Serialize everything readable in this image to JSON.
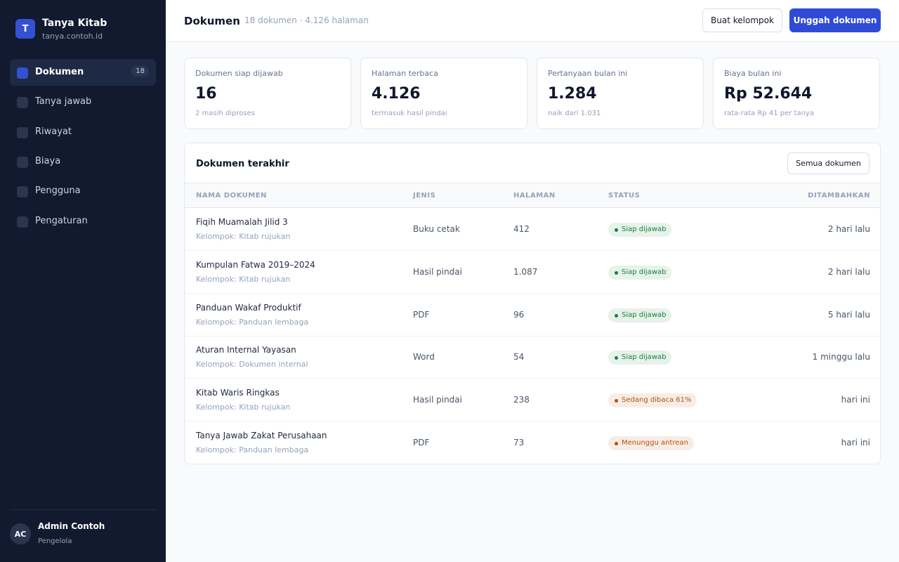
{
  "sidebar": {
    "logo": "T",
    "name": "Tanya Kitab",
    "domain": "tanya.contoh.id",
    "nav": [
      {
        "label": "Dokumen",
        "badge": "18",
        "active": true
      },
      {
        "label": "Tanya jawab"
      },
      {
        "label": "Riwayat"
      },
      {
        "label": "Biaya"
      },
      {
        "label": "Pengguna"
      },
      {
        "label": "Pengaturan"
      }
    ],
    "user": {
      "initials": "AC",
      "name": "Admin Contoh",
      "role": "Pengelola"
    }
  },
  "header": {
    "title": "Dokumen",
    "meta": "18 dokumen · 4.126 halaman",
    "secondary_button": "Buat kelompok",
    "primary_button": "Unggah dokumen"
  },
  "stats": [
    {
      "label": "Dokumen siap dijawab",
      "value": "16",
      "note": "2 masih diproses"
    },
    {
      "label": "Halaman terbaca",
      "value": "4.126",
      "note": "termasuk hasil pindai"
    },
    {
      "label": "Pertanyaan bulan ini",
      "value": "1.284",
      "note": "naik dari 1.031"
    },
    {
      "label": "Biaya bulan ini",
      "value": "Rp 52.644",
      "note": "rata-rata Rp 41 per tanya"
    }
  ],
  "table": {
    "title": "Dokumen terakhir",
    "button": "Semua dokumen",
    "columns": [
      "NAMA DOKUMEN",
      "JENIS",
      "HALAMAN",
      "STATUS",
      "DITAMBAHKAN"
    ],
    "rows": [
      {
        "name": "Fiqih Muamalah Jilid 3",
        "group": "Kelompok: Kitab rujukan",
        "type": "Buku cetak",
        "pages": "412",
        "status": "Siap dijawab",
        "status_color": "#15803d",
        "added": "2 hari lalu"
      },
      {
        "name": "Kumpulan Fatwa 2019–2024",
        "group": "Kelompok: Kitab rujukan",
        "type": "Hasil pindai",
        "pages": "1.087",
        "status": "Siap dijawab",
        "status_color": "#15803d",
        "added": "2 hari lalu"
      },
      {
        "name": "Panduan Wakaf Produktif",
        "group": "Kelompok: Panduan lembaga",
        "type": "PDF",
        "pages": "96",
        "status": "Siap dijawab",
        "status_color": "#15803d",
        "added": "5 hari lalu"
      },
      {
        "name": "Aturan Internal Yayasan",
        "group": "Kelompok: Dokumen internal",
        "type": "Word",
        "pages": "54",
        "status": "Siap dijawab",
        "status_color": "#15803d",
        "added": "1 minggu lalu"
      },
      {
        "name": "Kitab Waris Ringkas",
        "group": "Kelompok: Kitab rujukan",
        "type": "Hasil pindai",
        "pages": "238",
        "status": "Sedang dibaca 61%",
        "status_color": "#b45309",
        "added": "hari ini"
      },
      {
        "name": "Tanya Jawab Zakat Perusahaan",
        "group": "Kelompok: Panduan lembaga",
        "type": "PDF",
        "pages": "73",
        "status": "Menunggu antrean",
        "status_color": "#b45309",
        "added": "hari ini"
      }
    ]
  }
}
